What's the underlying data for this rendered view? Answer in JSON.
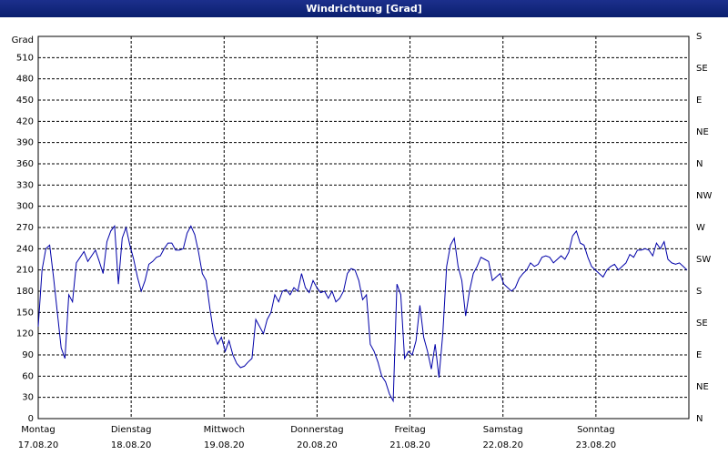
{
  "chart_data": {
    "type": "line",
    "title": "Windrichtung [Grad]",
    "y_label": "Grad",
    "ylim": [
      0,
      540
    ],
    "yticks": [
      0,
      30,
      60,
      90,
      120,
      150,
      180,
      210,
      240,
      270,
      300,
      330,
      360,
      390,
      420,
      450,
      480,
      510
    ],
    "y2lim": [
      0,
      540
    ],
    "y2ticks": [
      {
        "value": 0,
        "label": "N"
      },
      {
        "value": 45,
        "label": "NE"
      },
      {
        "value": 90,
        "label": "E"
      },
      {
        "value": 135,
        "label": "SE"
      },
      {
        "value": 180,
        "label": "S"
      },
      {
        "value": 225,
        "label": "SW"
      },
      {
        "value": 270,
        "label": "W"
      },
      {
        "value": 315,
        "label": "NW"
      },
      {
        "value": 360,
        "label": "N"
      },
      {
        "value": 405,
        "label": "NE"
      },
      {
        "value": 450,
        "label": "E"
      },
      {
        "value": 495,
        "label": "SE"
      },
      {
        "value": 540,
        "label": "S"
      }
    ],
    "xticks": [
      {
        "day": "Montag",
        "date": "17.08.20"
      },
      {
        "day": "Dienstag",
        "date": "18.08.20"
      },
      {
        "day": "Mittwoch",
        "date": "19.08.20"
      },
      {
        "day": "Donnerstag",
        "date": "20.08.20"
      },
      {
        "day": "Freitag",
        "date": "21.08.20"
      },
      {
        "day": "Samstag",
        "date": "22.08.20"
      },
      {
        "day": "Sonntag",
        "date": "23.08.20"
      }
    ],
    "grid": true,
    "color": "#0000a8",
    "values": [
      130,
      210,
      240,
      245,
      200,
      150,
      100,
      85,
      175,
      165,
      220,
      228,
      236,
      222,
      230,
      238,
      222,
      205,
      250,
      265,
      272,
      190,
      255,
      270,
      245,
      225,
      200,
      180,
      195,
      218,
      222,
      228,
      230,
      240,
      248,
      248,
      238,
      238,
      240,
      262,
      272,
      260,
      235,
      205,
      195,
      155,
      120,
      105,
      115,
      95,
      110,
      90,
      78,
      72,
      74,
      80,
      85,
      140,
      130,
      120,
      140,
      150,
      175,
      165,
      180,
      182,
      175,
      185,
      180,
      205,
      185,
      178,
      195,
      185,
      178,
      180,
      170,
      180,
      165,
      170,
      180,
      205,
      212,
      210,
      195,
      168,
      175,
      105,
      95,
      80,
      60,
      52,
      35,
      25,
      190,
      175,
      85,
      95,
      90,
      110,
      160,
      115,
      95,
      70,
      105,
      58,
      120,
      215,
      245,
      255,
      215,
      195,
      145,
      180,
      205,
      215,
      228,
      225,
      222,
      195,
      200,
      205,
      190,
      185,
      180,
      185,
      198,
      205,
      210,
      220,
      215,
      218,
      228,
      230,
      228,
      220,
      225,
      230,
      225,
      235,
      258,
      265,
      248,
      245,
      228,
      215,
      210,
      205,
      200,
      210,
      215,
      218,
      210,
      215,
      220,
      232,
      228,
      238,
      238,
      240,
      238,
      230,
      248,
      240,
      250,
      225,
      220,
      218,
      220,
      215,
      210
    ]
  }
}
